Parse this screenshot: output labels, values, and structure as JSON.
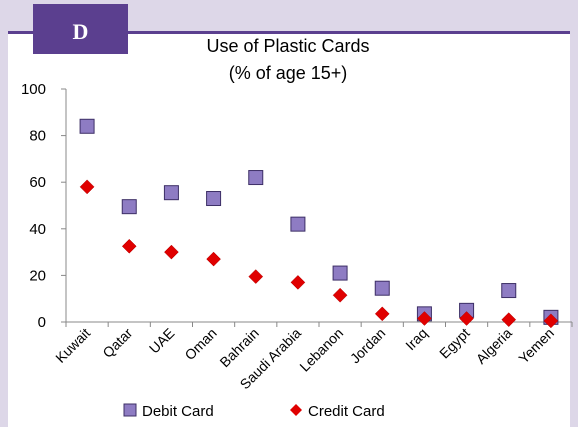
{
  "panel_label": "D",
  "chart_data": {
    "type": "scatter",
    "title": "Use of Plastic Cards",
    "subtitle": "(% of age 15+)",
    "categories": [
      "Kuwait",
      "Qatar",
      "UAE",
      "Oman",
      "Bahrain",
      "Saudi Arabia",
      "Lebanon",
      "Jordan",
      "Iraq",
      "Egypt",
      "Algeria",
      "Yemen"
    ],
    "series": [
      {
        "name": "Debit Card",
        "marker": "square",
        "color": "#8e7cc3",
        "values": [
          84,
          49.5,
          55.5,
          53,
          62,
          42,
          21,
          14.5,
          3.5,
          5,
          13.5,
          2
        ]
      },
      {
        "name": "Credit Card",
        "marker": "diamond",
        "color": "#e00000",
        "values": [
          58,
          32.5,
          30,
          27,
          19.5,
          17,
          11.5,
          3.5,
          1.5,
          1.5,
          1,
          0.5
        ]
      }
    ],
    "ylim": [
      0,
      100
    ],
    "yticks": [
      0,
      20,
      40,
      60,
      80,
      100
    ],
    "grid": false,
    "legend_position": "bottom"
  }
}
